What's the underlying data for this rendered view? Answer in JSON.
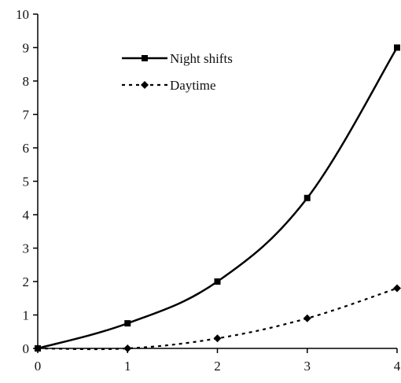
{
  "chart_data": {
    "type": "line",
    "title": "",
    "xlabel": "",
    "ylabel": "",
    "x": [
      0,
      1,
      2,
      3,
      4
    ],
    "xticks": [
      "0",
      "1",
      "2",
      "3",
      "4"
    ],
    "yticks": [
      "0",
      "1",
      "2",
      "3",
      "4",
      "5",
      "6",
      "7",
      "8",
      "9",
      "10"
    ],
    "xlim": [
      0,
      4
    ],
    "ylim": [
      0,
      10
    ],
    "grid": false,
    "legend_position": "top-left inside plot",
    "series": [
      {
        "name": "Night shifts",
        "values": [
          0,
          0.75,
          2.0,
          4.5,
          9.0
        ],
        "line_style": "solid",
        "marker": "square",
        "color": "#000000"
      },
      {
        "name": "Daytime",
        "values": [
          0,
          0.0,
          0.3,
          0.9,
          1.8
        ],
        "line_style": "dotted",
        "marker": "diamond",
        "color": "#000000"
      }
    ]
  }
}
